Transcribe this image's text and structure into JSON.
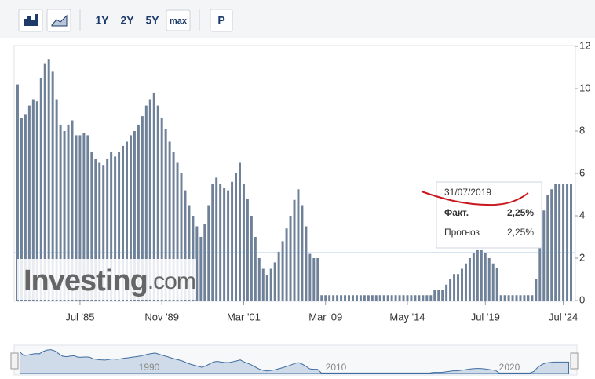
{
  "toolbar": {
    "buttons": [
      "1Y",
      "2Y",
      "5Y",
      "max",
      "P"
    ]
  },
  "watermark": {
    "brand": "Investing",
    "suffix": ".com"
  },
  "chart_data": {
    "type": "bar",
    "color": "#6f8198",
    "categories": [
      null,
      null,
      null,
      null,
      null,
      null,
      null,
      null,
      null,
      null,
      null,
      null,
      null,
      null,
      null,
      null,
      "Jul '85",
      null,
      null,
      null,
      null,
      null,
      null,
      null,
      null,
      null,
      null,
      null,
      null,
      null,
      null,
      null,
      null,
      null,
      null,
      null,
      null,
      "Nov '89",
      null,
      null,
      null,
      null,
      null,
      null,
      null,
      null,
      null,
      null,
      null,
      null,
      null,
      null,
      null,
      null,
      null,
      null,
      null,
      null,
      "Mar '01",
      null,
      null,
      null,
      null,
      null,
      null,
      null,
      null,
      null,
      null,
      null,
      null,
      null,
      null,
      null,
      null,
      null,
      null,
      null,
      null,
      "Mar '09",
      null,
      null,
      null,
      null,
      null,
      null,
      null,
      null,
      null,
      null,
      null,
      null,
      null,
      null,
      null,
      null,
      null,
      null,
      null,
      null,
      "May '14",
      null,
      null,
      null,
      null,
      null,
      null,
      null,
      null,
      null,
      null,
      null,
      null,
      null,
      null,
      null,
      null,
      null,
      null,
      null,
      "Jul '19",
      null,
      null,
      null,
      null,
      null,
      null,
      null,
      null,
      null,
      null,
      null,
      null,
      null,
      null,
      null,
      null,
      null,
      null,
      null,
      "Jul '24",
      null,
      null
    ],
    "values": [
      10.2,
      8.6,
      8.8,
      9.2,
      9.5,
      9.4,
      10.5,
      11.2,
      11.4,
      10.8,
      9.5,
      8.3,
      8,
      8.3,
      8.5,
      7.8,
      7.8,
      7.9,
      7.8,
      7,
      6.7,
      6.5,
      6.4,
      6.7,
      7,
      6.8,
      7,
      7.3,
      7.5,
      7.8,
      8,
      8.3,
      8.7,
      9.2,
      9.5,
      9.8,
      9.2,
      8.6,
      8.1,
      7.5,
      7,
      6.5,
      6,
      5.2,
      4.5,
      4,
      3.5,
      3,
      3.6,
      4.5,
      5.5,
      5.8,
      5.5,
      5.3,
      5.2,
      5.6,
      6,
      6.5,
      5.5,
      4.8,
      4,
      3,
      2,
      1.5,
      1.2,
      1.5,
      1.8,
      2.3,
      2.8,
      3.4,
      4,
      4.75,
      5.25,
      4.5,
      3.5,
      2.2,
      2,
      2,
      0.25,
      0.25,
      0.25,
      0.25,
      0.25,
      0.25,
      0.25,
      0.25,
      0.25,
      0.25,
      0.25,
      0.25,
      0.25,
      0.25,
      0.25,
      0.25,
      0.25,
      0.25,
      0.25,
      0.25,
      0.25,
      0.25,
      0.25,
      0.25,
      0.25,
      0.25,
      0.25,
      0.25,
      0.25,
      0.5,
      0.5,
      0.5,
      0.75,
      1,
      1.25,
      1.25,
      1.5,
      1.75,
      2,
      2.25,
      2.4,
      2.4,
      2.25,
      2,
      1.75,
      1.55,
      0.25,
      0.25,
      0.25,
      0.25,
      0.25,
      0.25,
      0.25,
      0.25,
      0.25,
      1,
      3,
      4.25,
      5,
      5.25,
      5.5,
      5.5,
      5.5,
      5.5,
      5.5
    ],
    "ylim": [
      0,
      12
    ],
    "yticks": [
      0,
      2,
      4,
      6,
      8,
      10,
      12
    ],
    "reference_line": 2.25,
    "tooltip": {
      "date": "31/07/2019",
      "actual_label": "Факт.",
      "actual": "2,25%",
      "forecast_label": "Прогноз",
      "forecast": "2,25%"
    },
    "navigator_labels": [
      "1990",
      "2010",
      "2020"
    ]
  }
}
